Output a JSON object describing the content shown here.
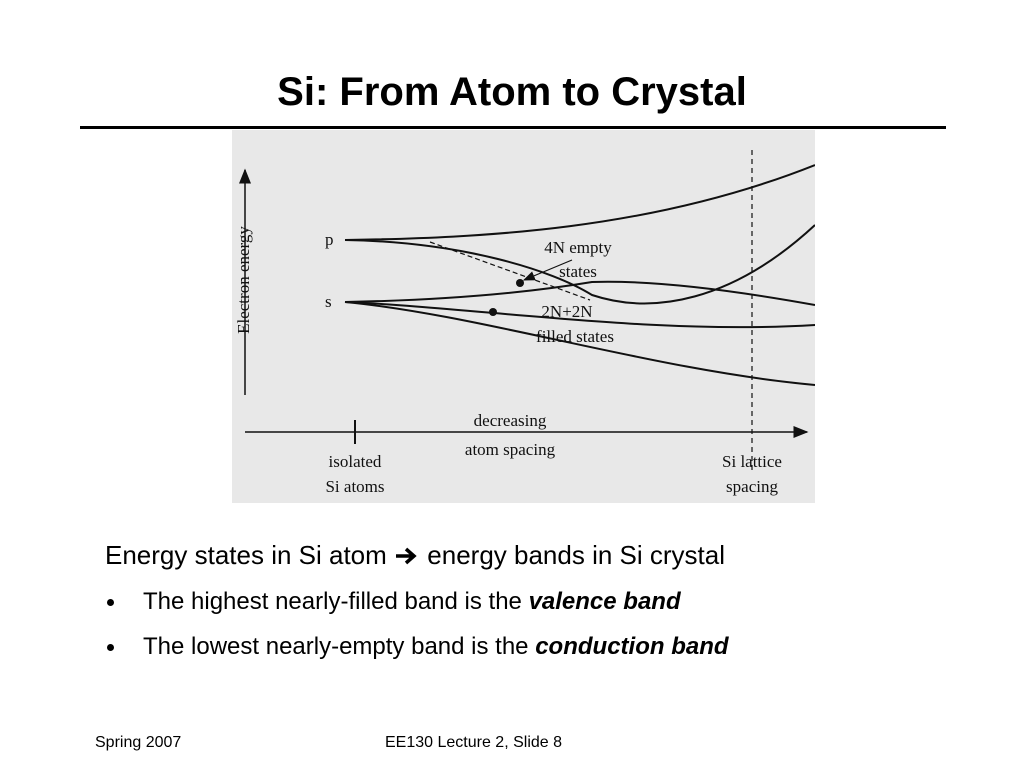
{
  "title": "Si: From Atom to Crystal",
  "figure": {
    "y_axis_label": "Electron energy",
    "levels": [
      "p",
      "s"
    ],
    "empty_label": [
      "4N empty",
      "states"
    ],
    "filled_label": [
      "2N+2N",
      "filled states"
    ],
    "arrow_label": [
      "decreasing",
      "atom spacing"
    ],
    "left_mark_label": [
      "isolated",
      "Si atoms"
    ],
    "right_mark_label": [
      "Si lattice",
      "spacing"
    ]
  },
  "heading": {
    "left": "Energy states in Si atom",
    "right": "energy bands in Si crystal"
  },
  "bullets": [
    {
      "text": "The highest nearly-filled band is the",
      "emphasis": "valence band"
    },
    {
      "text": "The lowest nearly-empty band is the",
      "emphasis": "conduction band"
    }
  ],
  "footer": {
    "left": "Spring 2007",
    "center": "EE130 Lecture 2, Slide 8"
  }
}
